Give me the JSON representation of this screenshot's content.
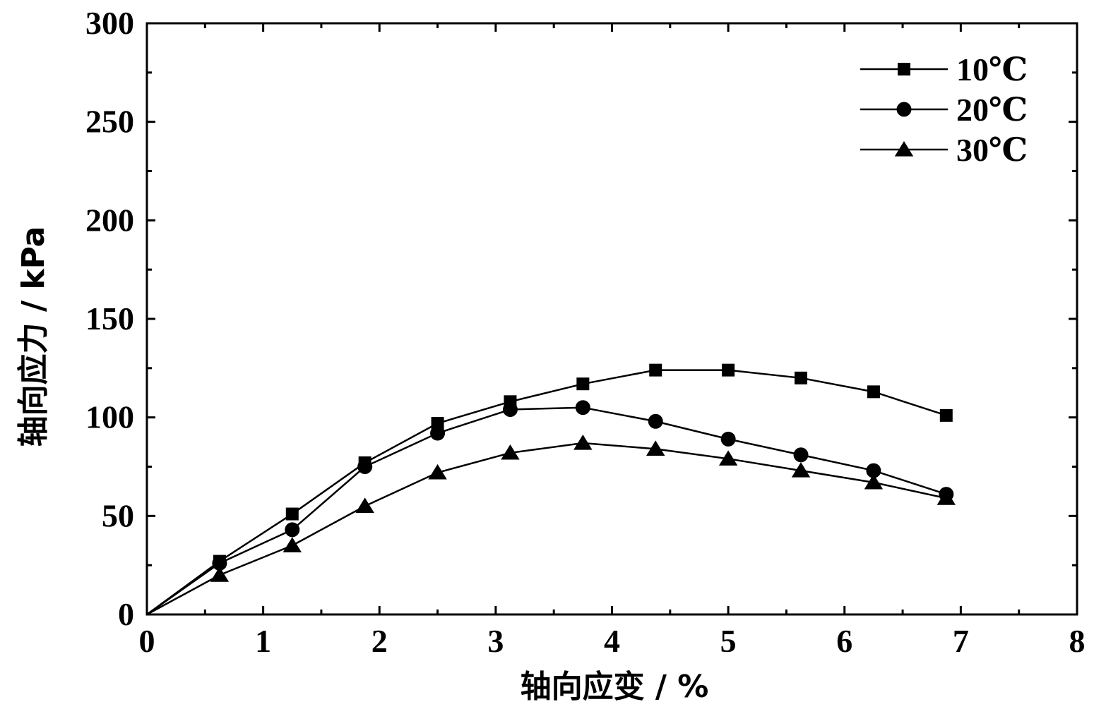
{
  "chart_data": {
    "type": "line",
    "xlabel": "轴向应变 / %",
    "ylabel": "轴向应力 / kPa",
    "xlim": [
      0,
      8
    ],
    "ylim": [
      0,
      300
    ],
    "x_ticks": [
      "0",
      "1",
      "2",
      "3",
      "4",
      "5",
      "6",
      "7",
      "8"
    ],
    "y_ticks": [
      "0",
      "50",
      "100",
      "150",
      "200",
      "250",
      "300"
    ],
    "grid": false,
    "legend_position": "top-right",
    "series": [
      {
        "name": "10℃",
        "marker": "square",
        "x": [
          0,
          0.625,
          1.25,
          1.875,
          2.5,
          3.125,
          3.75,
          4.375,
          5.0,
          5.625,
          6.25,
          6.875
        ],
        "values": [
          0,
          27,
          51,
          77,
          97,
          108,
          117,
          124,
          124,
          120,
          113,
          101
        ]
      },
      {
        "name": "20℃",
        "marker": "circle",
        "x": [
          0,
          0.625,
          1.25,
          1.875,
          2.5,
          3.125,
          3.75,
          4.375,
          5.0,
          5.625,
          6.25,
          6.875
        ],
        "values": [
          0,
          26,
          43,
          75,
          92,
          104,
          105,
          98,
          89,
          81,
          73,
          61
        ]
      },
      {
        "name": "30℃",
        "marker": "triangle",
        "x": [
          0,
          0.625,
          1.25,
          1.875,
          2.5,
          3.125,
          3.75,
          4.375,
          5.0,
          5.625,
          6.25,
          6.875
        ],
        "values": [
          0,
          20,
          35,
          55,
          72,
          82,
          87,
          84,
          79,
          73,
          67,
          59
        ]
      }
    ]
  }
}
